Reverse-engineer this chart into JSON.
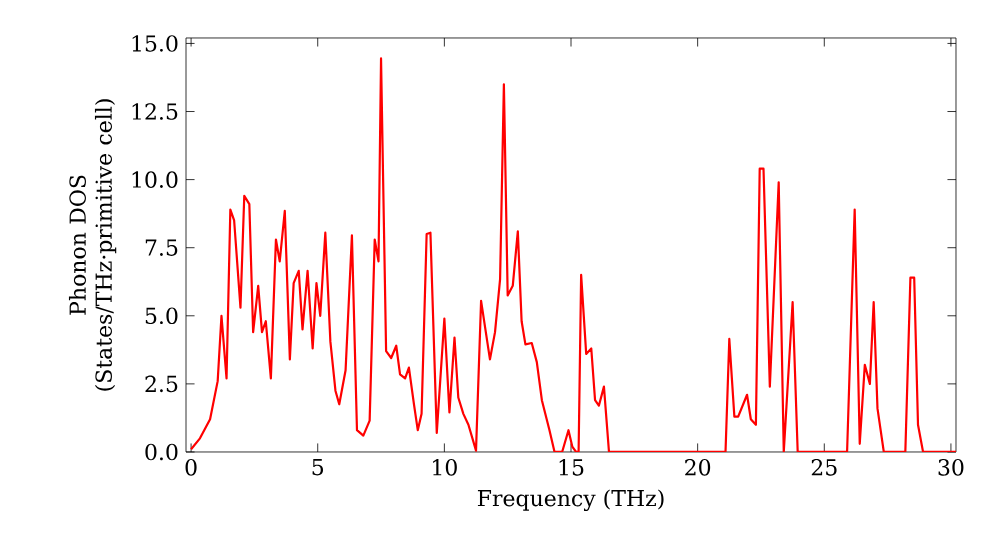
{
  "chart_data": {
    "type": "line",
    "xlabel": "Frequency (THz)",
    "ylabel": "Phonon DOS (States/THz·primitive cell)",
    "xlim": [
      -0.2,
      30.2
    ],
    "ylim": [
      0,
      15.2
    ],
    "xticks": [
      0,
      5,
      10,
      15,
      20,
      25,
      30
    ],
    "yticks": [
      {
        "value": 0,
        "label": "0.0"
      },
      {
        "value": 2.5,
        "label": "2.5"
      },
      {
        "value": 5,
        "label": "5.0"
      },
      {
        "value": 7.5,
        "label": "7.5"
      },
      {
        "value": 10,
        "label": "10.0"
      },
      {
        "value": 12.5,
        "label": "12.5"
      },
      {
        "value": 15,
        "label": "15.0"
      }
    ],
    "line_style": "solid",
    "marker": "none",
    "series": [
      {
        "color": "#ff0000",
        "x": [
          0,
          0.35,
          0.75,
          1.05,
          1.2,
          1.4,
          1.55,
          1.7,
          1.95,
          2.1,
          2.3,
          2.45,
          2.65,
          2.8,
          2.95,
          3.15,
          3.35,
          3.5,
          3.7,
          3.9,
          4.05,
          4.25,
          4.4,
          4.6,
          4.8,
          4.95,
          5.1,
          5.3,
          5.5,
          5.7,
          5.85,
          6.1,
          6.35,
          6.55,
          6.8,
          7.05,
          7.25,
          7.4,
          7.5,
          7.7,
          7.9,
          8.1,
          8.25,
          8.45,
          8.6,
          8.8,
          8.95,
          9.1,
          9.3,
          9.45,
          9.7,
          10.0,
          10.2,
          10.4,
          10.55,
          10.75,
          10.95,
          11.25,
          11.45,
          11.8,
          12.0,
          12.2,
          12.35,
          12.5,
          12.7,
          12.9,
          13.05,
          13.2,
          13.45,
          13.65,
          13.85,
          14.15,
          14.35,
          14.65,
          14.9,
          15.05,
          15.2,
          15.3,
          15.4,
          15.6,
          15.8,
          15.95,
          16.1,
          16.3,
          16.5,
          21.1,
          21.25,
          21.45,
          21.6,
          21.95,
          22.1,
          22.3,
          22.45,
          22.6,
          22.85,
          23.2,
          23.4,
          23.75,
          23.95,
          25.9,
          26.2,
          26.4,
          26.6,
          26.8,
          26.95,
          27.1,
          27.35,
          28.2,
          28.4,
          28.55,
          28.7,
          28.9,
          30.2
        ],
        "values": [
          0.1,
          0.5,
          1.2,
          2.6,
          5.0,
          2.7,
          8.9,
          8.5,
          5.3,
          9.4,
          9.1,
          4.4,
          6.1,
          4.4,
          4.8,
          2.7,
          7.8,
          7.0,
          8.85,
          3.4,
          6.2,
          6.65,
          4.5,
          6.65,
          3.8,
          6.2,
          5.0,
          8.05,
          4.05,
          2.25,
          1.75,
          3.0,
          7.95,
          0.8,
          0.6,
          1.15,
          7.8,
          7.0,
          14.45,
          3.7,
          3.45,
          3.9,
          2.85,
          2.7,
          3.1,
          1.75,
          0.8,
          1.4,
          8.0,
          8.05,
          0.7,
          4.9,
          1.45,
          4.2,
          2.0,
          1.4,
          1.0,
          0.05,
          5.55,
          3.4,
          4.4,
          6.35,
          13.5,
          5.75,
          6.1,
          8.1,
          4.8,
          3.95,
          4.0,
          3.3,
          1.9,
          0.8,
          0,
          0,
          0.8,
          0.2,
          0,
          0,
          6.5,
          3.6,
          3.8,
          1.9,
          1.7,
          2.4,
          0,
          0,
          4.15,
          1.3,
          1.3,
          2.1,
          1.2,
          1.0,
          10.4,
          10.4,
          2.4,
          9.9,
          0,
          5.5,
          0,
          0,
          8.9,
          0.3,
          3.2,
          2.5,
          5.5,
          1.6,
          0,
          0,
          6.4,
          6.4,
          1.0,
          0,
          0
        ]
      }
    ]
  }
}
